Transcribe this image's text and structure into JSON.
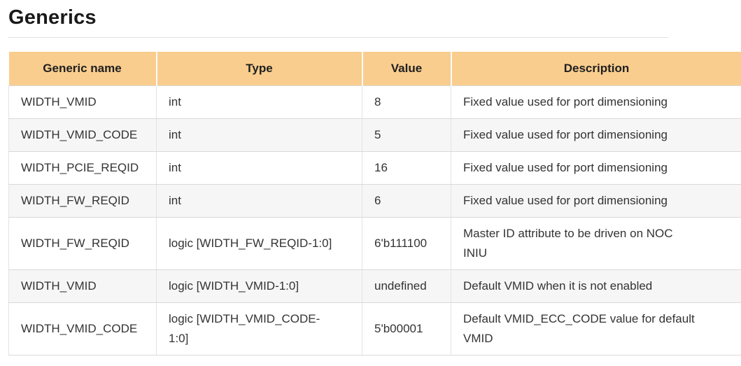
{
  "page": {
    "title": "Generics"
  },
  "colors": {
    "title_text": "#1a1a1a",
    "header_bg": "#f9cd8e",
    "header_text": "#1f1f1f",
    "cell_text": "#333333",
    "alt_row_bg": "#f6f6f7",
    "row_border": "#d9d9d9",
    "col_border": "#e3e3e5",
    "divider": "#e1e1e1"
  },
  "table": {
    "columns": [
      "Generic name",
      "Type",
      "Value",
      "Description"
    ],
    "rows": [
      {
        "name": "WIDTH_VMID",
        "type": "int",
        "value": "8",
        "description": "Fixed value used for port dimensioning"
      },
      {
        "name": "WIDTH_VMID_CODE",
        "type": "int",
        "value": "5",
        "description": "Fixed value used for port dimensioning"
      },
      {
        "name": "WIDTH_PCIE_REQID",
        "type": "int",
        "value": "16",
        "description": "Fixed value used for port dimensioning"
      },
      {
        "name": "WIDTH_FW_REQID",
        "type": "int",
        "value": "6",
        "description": "Fixed value used for port dimensioning"
      },
      {
        "name": "WIDTH_FW_REQID",
        "type": "logic [WIDTH_FW_REQID-1:0]",
        "value": "6'b111100",
        "description": "Master ID attribute to be driven on NOC INIU"
      },
      {
        "name": "WIDTH_VMID",
        "type": "logic [WIDTH_VMID-1:0]",
        "value": "undefined",
        "description": "Default VMID when it is not enabled"
      },
      {
        "name": "WIDTH_VMID_CODE",
        "type": "logic [WIDTH_VMID_CODE-1:0]",
        "value": "5'b00001",
        "description": "Default VMID_ECC_CODE value for default VMID"
      }
    ]
  }
}
